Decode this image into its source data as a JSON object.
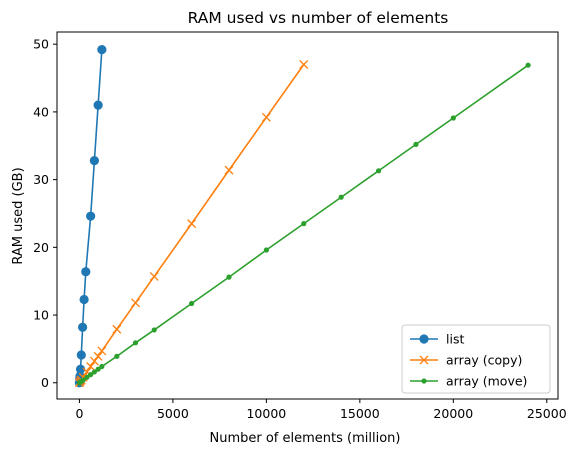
{
  "chart_data": {
    "type": "line",
    "title": "RAM used vs number of elements",
    "xlabel": "Number of elements (million)",
    "ylabel": "RAM used (GB)",
    "xlim": [
      -1200,
      25600
    ],
    "ylim": [
      -2.4,
      51.8
    ],
    "xticks": [
      0,
      5000,
      10000,
      15000,
      20000,
      25000
    ],
    "yticks": [
      0,
      10,
      20,
      30,
      40,
      50
    ],
    "grid": false,
    "legend_position": "bottom-right",
    "series": [
      {
        "name": "list",
        "color": "#1f77b4",
        "marker": "circle",
        "points": [
          [
            0,
            0.0
          ],
          [
            15,
            0.6
          ],
          [
            30,
            1.0
          ],
          [
            60,
            2.0
          ],
          [
            100,
            4.1
          ],
          [
            170,
            8.2
          ],
          [
            250,
            12.3
          ],
          [
            340,
            16.4
          ],
          [
            600,
            24.6
          ],
          [
            800,
            32.8
          ],
          [
            1000,
            41.0
          ],
          [
            1200,
            49.2
          ]
        ]
      },
      {
        "name": "array (copy)",
        "color": "#ff7f0e",
        "marker": "x",
        "points": [
          [
            0,
            0.0
          ],
          [
            50,
            0.2
          ],
          [
            100,
            0.4
          ],
          [
            200,
            0.8
          ],
          [
            400,
            1.6
          ],
          [
            600,
            2.4
          ],
          [
            800,
            3.2
          ],
          [
            1000,
            3.9
          ],
          [
            1200,
            4.7
          ],
          [
            2000,
            7.9
          ],
          [
            3000,
            11.8
          ],
          [
            4000,
            15.7
          ],
          [
            6000,
            23.5
          ],
          [
            8000,
            31.4
          ],
          [
            10000,
            39.2
          ],
          [
            12000,
            47.0
          ]
        ]
      },
      {
        "name": "array (move)",
        "color": "#2ca02c",
        "marker": "dot",
        "points": [
          [
            0,
            0.0
          ],
          [
            100,
            0.2
          ],
          [
            200,
            0.4
          ],
          [
            400,
            0.8
          ],
          [
            600,
            1.2
          ],
          [
            800,
            1.6
          ],
          [
            1000,
            2.0
          ],
          [
            1200,
            2.4
          ],
          [
            2000,
            3.9
          ],
          [
            3000,
            5.9
          ],
          [
            4000,
            7.8
          ],
          [
            6000,
            11.7
          ],
          [
            8000,
            15.6
          ],
          [
            10000,
            19.6
          ],
          [
            12000,
            23.5
          ],
          [
            14000,
            27.4
          ],
          [
            16000,
            31.3
          ],
          [
            18000,
            35.2
          ],
          [
            20000,
            39.1
          ],
          [
            24000,
            46.9
          ]
        ]
      }
    ]
  }
}
